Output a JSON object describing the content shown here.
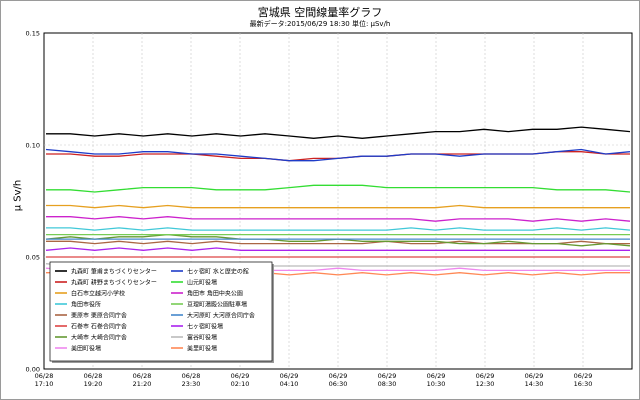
{
  "title": "宮城県 空間線量率グラフ",
  "subtitle": "最新データ:2015/06/29 18:30   単位: μSv/h",
  "chart_data": {
    "type": "line",
    "title": "宮城県 空間線量率グラフ",
    "ylabel": "μ Sv/h",
    "xlabel": "",
    "ylim": [
      0.0,
      0.15
    ],
    "yticks": [
      "0.00",
      "0.05",
      "0.10",
      "0.15"
    ],
    "grid": true,
    "legend_placement": "bottom-left",
    "x_ticks": [
      {
        "date": "06/28",
        "time": "17:10"
      },
      {
        "date": "06/28",
        "time": "19:20"
      },
      {
        "date": "06/28",
        "time": "21:20"
      },
      {
        "date": "06/28",
        "time": "23:30"
      },
      {
        "date": "06/29",
        "time": "02:10"
      },
      {
        "date": "06/29",
        "time": "04:10"
      },
      {
        "date": "06/29",
        "time": "06:30"
      },
      {
        "date": "06/29",
        "time": "08:30"
      },
      {
        "date": "06/29",
        "time": "10:30"
      },
      {
        "date": "06/29",
        "time": "12:30"
      },
      {
        "date": "06/29",
        "time": "14:30"
      },
      {
        "date": "06/29",
        "time": "16:30"
      }
    ],
    "series": [
      {
        "name": "丸森町  筆甫まちづくりセンター",
        "color": "#000000",
        "values": [
          0.105,
          0.105,
          0.104,
          0.105,
          0.104,
          0.105,
          0.104,
          0.105,
          0.104,
          0.105,
          0.104,
          0.103,
          0.104,
          0.103,
          0.104,
          0.105,
          0.106,
          0.106,
          0.107,
          0.106,
          0.107,
          0.107,
          0.108,
          0.107,
          0.106
        ]
      },
      {
        "name": "丸森町  耕野まちづくりセンター",
        "color": "#cc2222",
        "values": [
          0.096,
          0.096,
          0.095,
          0.095,
          0.096,
          0.096,
          0.096,
          0.095,
          0.094,
          0.094,
          0.093,
          0.094,
          0.094,
          0.095,
          0.095,
          0.096,
          0.096,
          0.096,
          0.096,
          0.096,
          0.096,
          0.097,
          0.097,
          0.096,
          0.096
        ]
      },
      {
        "name": "白石市立越河小学校",
        "color": "#e6a020",
        "values": [
          0.073,
          0.073,
          0.072,
          0.073,
          0.072,
          0.073,
          0.072,
          0.072,
          0.072,
          0.072,
          0.072,
          0.072,
          0.072,
          0.072,
          0.072,
          0.072,
          0.072,
          0.073,
          0.072,
          0.072,
          0.072,
          0.072,
          0.072,
          0.072,
          0.072
        ]
      },
      {
        "name": "角田市役所",
        "color": "#40c8d8",
        "values": [
          0.063,
          0.063,
          0.062,
          0.063,
          0.062,
          0.063,
          0.062,
          0.062,
          0.062,
          0.062,
          0.062,
          0.062,
          0.062,
          0.062,
          0.062,
          0.063,
          0.062,
          0.063,
          0.062,
          0.062,
          0.062,
          0.063,
          0.062,
          0.063,
          0.062
        ]
      },
      {
        "name": "栗原市  栗原合同庁舎",
        "color": "#aa6644",
        "values": [
          0.057,
          0.057,
          0.056,
          0.057,
          0.056,
          0.057,
          0.056,
          0.057,
          0.056,
          0.056,
          0.056,
          0.056,
          0.056,
          0.056,
          0.057,
          0.056,
          0.056,
          0.057,
          0.056,
          0.056,
          0.056,
          0.056,
          0.057,
          0.056,
          0.056
        ]
      },
      {
        "name": "石巻市  石巻合同庁舎",
        "color": "#dd4444",
        "values": [
          0.05,
          0.05,
          0.05,
          0.05,
          0.05,
          0.05,
          0.05,
          0.05,
          0.05,
          0.05,
          0.05,
          0.05,
          0.05,
          0.05,
          0.05,
          0.05,
          0.05,
          0.05,
          0.05,
          0.05,
          0.05,
          0.05,
          0.05,
          0.05,
          0.05
        ]
      },
      {
        "name": "大崎市  大崎合同庁舎",
        "color": "#669933",
        "values": [
          0.058,
          0.059,
          0.058,
          0.059,
          0.059,
          0.06,
          0.059,
          0.059,
          0.058,
          0.058,
          0.057,
          0.057,
          0.058,
          0.057,
          0.057,
          0.057,
          0.057,
          0.056,
          0.056,
          0.057,
          0.056,
          0.056,
          0.055,
          0.056,
          0.055
        ]
      },
      {
        "name": "美田町役場",
        "color": "#ee88ee",
        "values": [
          0.045,
          0.044,
          0.044,
          0.045,
          0.044,
          0.045,
          0.044,
          0.045,
          0.044,
          0.044,
          0.044,
          0.044,
          0.045,
          0.044,
          0.044,
          0.044,
          0.044,
          0.045,
          0.044,
          0.044,
          0.044,
          0.044,
          0.044,
          0.044,
          0.044
        ]
      },
      {
        "name": "七ヶ宿町  水と歴史の館",
        "color": "#1e3cc8",
        "values": [
          0.098,
          0.097,
          0.096,
          0.096,
          0.097,
          0.097,
          0.096,
          0.096,
          0.095,
          0.094,
          0.093,
          0.093,
          0.094,
          0.095,
          0.095,
          0.096,
          0.096,
          0.095,
          0.096,
          0.096,
          0.096,
          0.097,
          0.098,
          0.096,
          0.097
        ]
      },
      {
        "name": "山元町役場",
        "color": "#33dd33",
        "values": [
          0.08,
          0.08,
          0.079,
          0.08,
          0.081,
          0.081,
          0.081,
          0.08,
          0.08,
          0.08,
          0.081,
          0.082,
          0.082,
          0.082,
          0.081,
          0.081,
          0.081,
          0.081,
          0.081,
          0.081,
          0.081,
          0.08,
          0.08,
          0.08,
          0.079
        ]
      },
      {
        "name": "角田市  角田中央公園",
        "color": "#cc22cc",
        "values": [
          0.068,
          0.068,
          0.067,
          0.068,
          0.067,
          0.068,
          0.067,
          0.067,
          0.067,
          0.067,
          0.067,
          0.067,
          0.067,
          0.067,
          0.067,
          0.067,
          0.066,
          0.067,
          0.067,
          0.067,
          0.066,
          0.067,
          0.066,
          0.067,
          0.066
        ]
      },
      {
        "name": "亘理町湯殿公園駐車場",
        "color": "#77cc55",
        "values": [
          0.06,
          0.06,
          0.06,
          0.06,
          0.06,
          0.06,
          0.06,
          0.06,
          0.06,
          0.06,
          0.06,
          0.06,
          0.06,
          0.06,
          0.06,
          0.06,
          0.06,
          0.06,
          0.06,
          0.06,
          0.06,
          0.06,
          0.06,
          0.06,
          0.06
        ]
      },
      {
        "name": "大河原町  大河原合同庁舎",
        "color": "#4488cc",
        "values": [
          0.058,
          0.058,
          0.058,
          0.058,
          0.058,
          0.058,
          0.058,
          0.058,
          0.058,
          0.058,
          0.058,
          0.058,
          0.058,
          0.058,
          0.058,
          0.058,
          0.058,
          0.058,
          0.058,
          0.058,
          0.058,
          0.058,
          0.058,
          0.058,
          0.058
        ]
      },
      {
        "name": "七ヶ宿町役場",
        "color": "#aa22ee",
        "values": [
          0.053,
          0.054,
          0.053,
          0.054,
          0.053,
          0.054,
          0.053,
          0.054,
          0.053,
          0.053,
          0.053,
          0.053,
          0.053,
          0.053,
          0.053,
          0.053,
          0.053,
          0.053,
          0.053,
          0.053,
          0.053,
          0.053,
          0.053,
          0.053,
          0.053
        ]
      },
      {
        "name": "富谷町役場",
        "color": "#bbbbbb",
        "values": [
          0.047,
          0.046,
          0.046,
          0.046,
          0.046,
          0.046,
          0.046,
          0.046,
          0.046,
          0.046,
          0.046,
          0.046,
          0.046,
          0.046,
          0.046,
          0.046,
          0.046,
          0.046,
          0.046,
          0.046,
          0.046,
          0.046,
          0.046,
          0.046,
          0.046
        ]
      },
      {
        "name": "美里町役場",
        "color": "#ff8855",
        "values": [
          0.043,
          0.043,
          0.042,
          0.043,
          0.042,
          0.043,
          0.042,
          0.043,
          0.042,
          0.043,
          0.042,
          0.043,
          0.042,
          0.043,
          0.042,
          0.043,
          0.042,
          0.043,
          0.042,
          0.043,
          0.042,
          0.043,
          0.042,
          0.043,
          0.043
        ]
      }
    ]
  }
}
